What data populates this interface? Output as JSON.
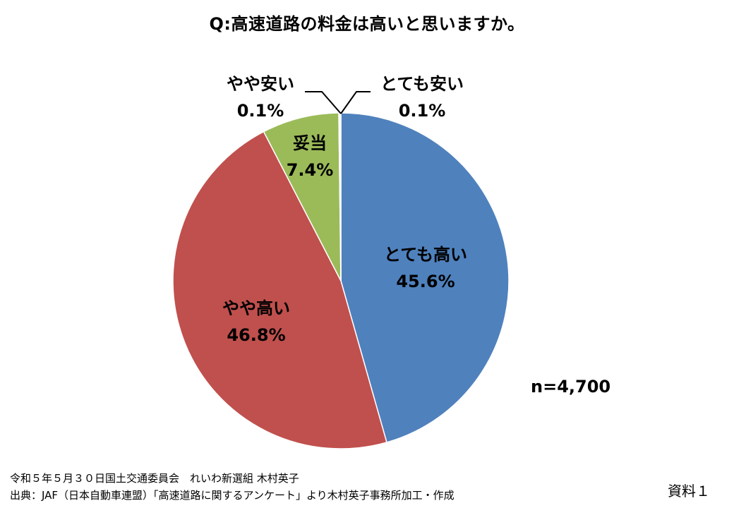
{
  "chart_data": {
    "type": "pie",
    "title": "Q:高速道路の料金は高いと思いますか。",
    "slices": [
      {
        "label": "とても高い",
        "value": 45.6,
        "display": "45.6%",
        "color": "#4f81bd"
      },
      {
        "label": "やや高い",
        "value": 46.8,
        "display": "46.8%",
        "color": "#c0504d"
      },
      {
        "label": "妥当",
        "value": 7.4,
        "display": "7.4%",
        "color": "#9bbb59"
      },
      {
        "label": "やや安い",
        "value": 0.1,
        "display": "0.1%",
        "color": "#8064a2"
      },
      {
        "label": "とても安い",
        "value": 0.1,
        "display": "0.1%",
        "color": "#4bacc6"
      }
    ],
    "sample_size": "n=4,700"
  },
  "footer": {
    "line1": "令和５年５月３０日国土交通委員会　れいわ新選組 木村英子",
    "line2": "出典：JAF（日本自動車連盟）「高速道路に関するアンケート」より木村英子事務所加工・作成"
  },
  "doc_label": "資料１"
}
